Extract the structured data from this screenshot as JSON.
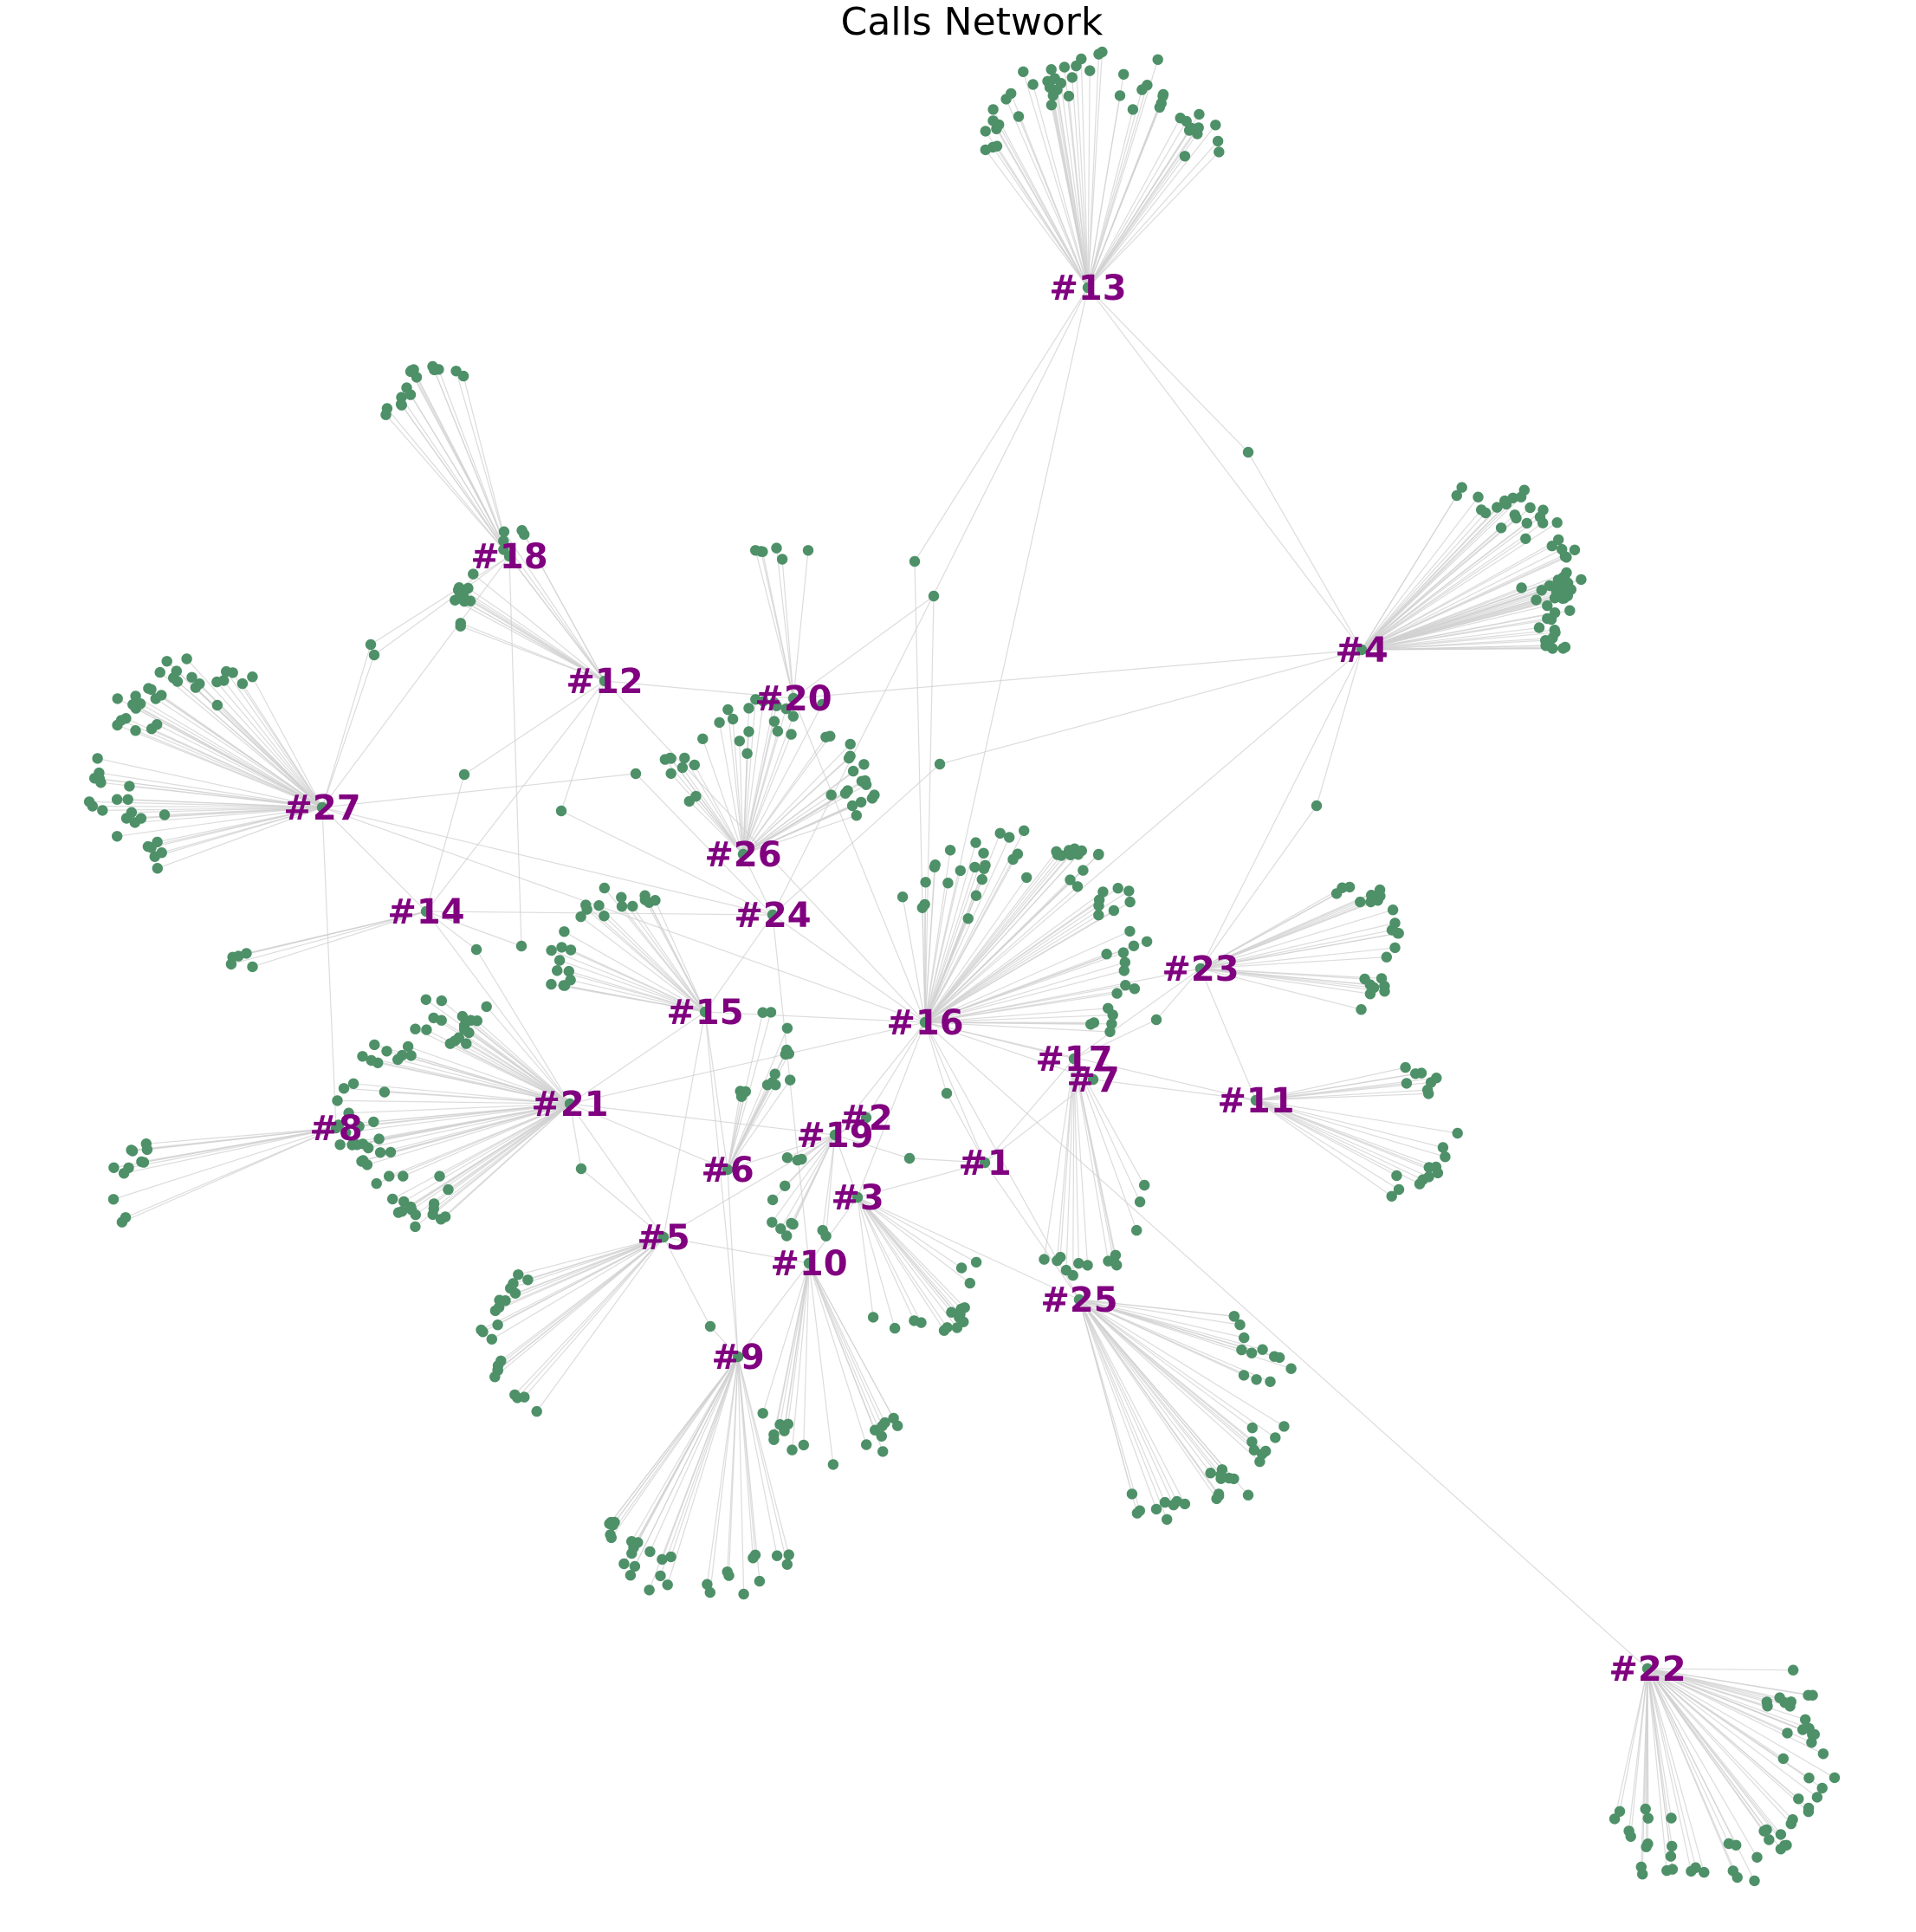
{
  "title": "Calls Network",
  "colors": {
    "background": "#ffffff",
    "node": "#4e9068",
    "hub_label": "#800080",
    "edge": "#d0d0d0",
    "title": "#000000"
  },
  "hubs": [
    {
      "id": "1",
      "label": "#1"
    },
    {
      "id": "2",
      "label": "#2"
    },
    {
      "id": "3",
      "label": "#3"
    },
    {
      "id": "4",
      "label": "#4"
    },
    {
      "id": "5",
      "label": "#5"
    },
    {
      "id": "6",
      "label": "#6"
    },
    {
      "id": "7",
      "label": "#7"
    },
    {
      "id": "8",
      "label": "#8"
    },
    {
      "id": "9",
      "label": "#9"
    },
    {
      "id": "10",
      "label": "#10"
    },
    {
      "id": "11",
      "label": "#11"
    },
    {
      "id": "12",
      "label": "#12"
    },
    {
      "id": "13",
      "label": "#13"
    },
    {
      "id": "14",
      "label": "#14"
    },
    {
      "id": "15",
      "label": "#15"
    },
    {
      "id": "16",
      "label": "#16"
    },
    {
      "id": "17",
      "label": "#17"
    },
    {
      "id": "18",
      "label": "#18"
    },
    {
      "id": "19",
      "label": "#19"
    },
    {
      "id": "20",
      "label": "#20"
    },
    {
      "id": "21",
      "label": "#21"
    },
    {
      "id": "22",
      "label": "#22"
    },
    {
      "id": "23",
      "label": "#23"
    },
    {
      "id": "24",
      "label": "#24"
    },
    {
      "id": "25",
      "label": "#25"
    },
    {
      "id": "26",
      "label": "#26"
    },
    {
      "id": "27",
      "label": "#27"
    }
  ],
  "hub_links": [
    [
      "13",
      "16"
    ],
    [
      "13",
      "24"
    ],
    [
      "13",
      "4"
    ],
    [
      "4",
      "16"
    ],
    [
      "4",
      "23"
    ],
    [
      "4",
      "20"
    ],
    [
      "18",
      "12"
    ],
    [
      "18",
      "27"
    ],
    [
      "12",
      "20"
    ],
    [
      "12",
      "16"
    ],
    [
      "12",
      "14"
    ],
    [
      "20",
      "16"
    ],
    [
      "27",
      "14"
    ],
    [
      "27",
      "24"
    ],
    [
      "27",
      "8"
    ],
    [
      "27",
      "16"
    ],
    [
      "14",
      "21"
    ],
    [
      "14",
      "24"
    ],
    [
      "24",
      "16"
    ],
    [
      "24",
      "15"
    ],
    [
      "26",
      "24"
    ],
    [
      "15",
      "21"
    ],
    [
      "15",
      "16"
    ],
    [
      "16",
      "21"
    ],
    [
      "16",
      "17"
    ],
    [
      "16",
      "7"
    ],
    [
      "16",
      "11"
    ],
    [
      "16",
      "23"
    ],
    [
      "16",
      "1"
    ],
    [
      "16",
      "25"
    ],
    [
      "16",
      "2"
    ],
    [
      "16",
      "19"
    ],
    [
      "16",
      "3"
    ],
    [
      "21",
      "8"
    ],
    [
      "21",
      "6"
    ],
    [
      "21",
      "19"
    ],
    [
      "21",
      "5"
    ],
    [
      "15",
      "5"
    ],
    [
      "15",
      "6"
    ],
    [
      "2",
      "19"
    ],
    [
      "19",
      "3"
    ],
    [
      "19",
      "6"
    ],
    [
      "3",
      "10"
    ],
    [
      "10",
      "9"
    ],
    [
      "6",
      "9"
    ],
    [
      "5",
      "10"
    ],
    [
      "1",
      "25"
    ],
    [
      "1",
      "3"
    ],
    [
      "1",
      "7"
    ],
    [
      "7",
      "11"
    ],
    [
      "17",
      "23"
    ],
    [
      "11",
      "23"
    ],
    [
      "16",
      "22"
    ],
    [
      "24",
      "10"
    ],
    [
      "15",
      "9"
    ],
    [
      "2",
      "5"
    ],
    [
      "3",
      "25"
    ],
    [
      "17",
      "1"
    ]
  ]
}
